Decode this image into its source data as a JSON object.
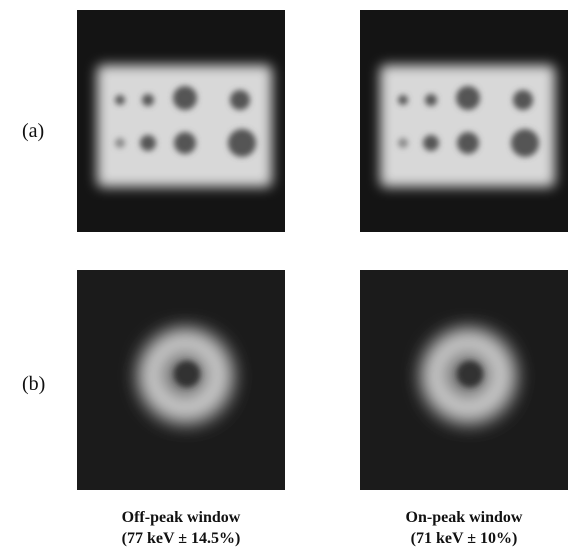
{
  "panel_labels": [
    "(a)",
    "(b)"
  ],
  "captions": [
    {
      "line1": "Off-peak window",
      "line2": "(77 keV ± 14.5%)"
    },
    {
      "line1": "On-peak window",
      "line2": "(71 keV ± 10%)"
    }
  ]
}
